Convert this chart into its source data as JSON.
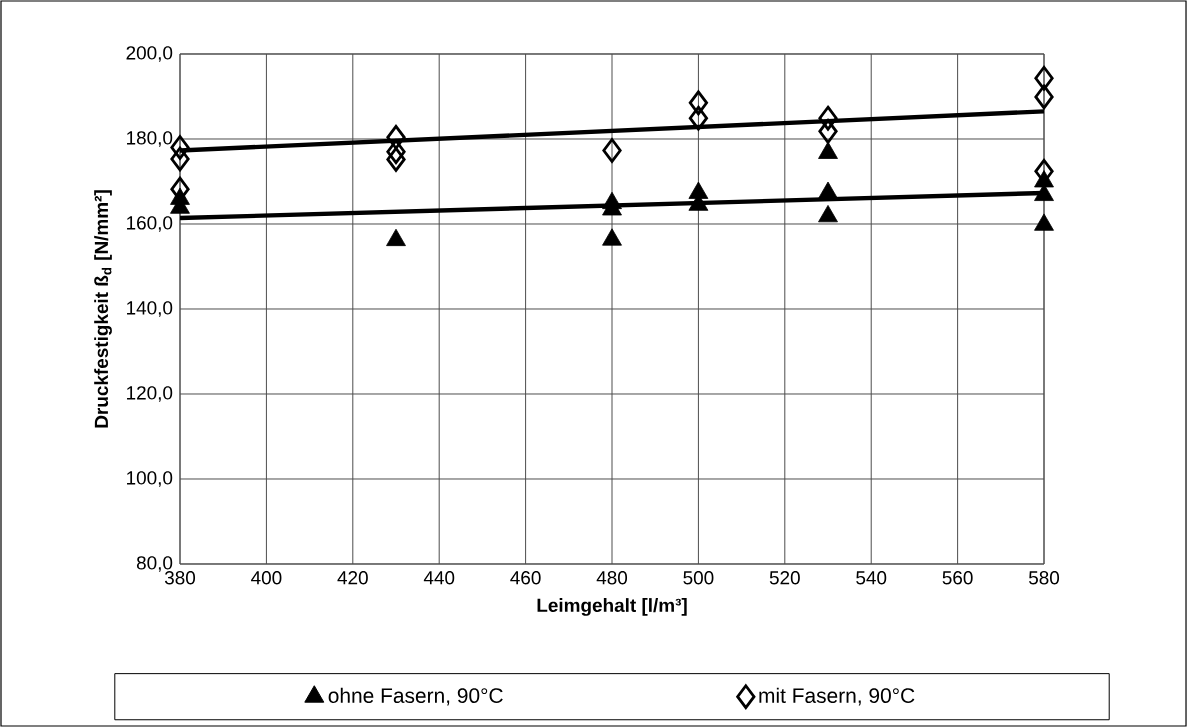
{
  "chart_data": {
    "type": "scatter",
    "xlabel": "Leimgehalt [l/m³]",
    "ylabel": "Druckfestigkeit  ß$_{d}$ [N/mm²]",
    "xlim": [
      380,
      580
    ],
    "xticks": [
      380,
      400,
      420,
      440,
      460,
      480,
      500,
      520,
      540,
      560,
      580
    ],
    "ylim": [
      80,
      200
    ],
    "yticks": [
      {
        "value": 80,
        "label": "80,0"
      },
      {
        "value": 100,
        "label": "100,0"
      },
      {
        "value": 120,
        "label": "120,0"
      },
      {
        "value": 140,
        "label": "140,0"
      },
      {
        "value": 160,
        "label": "160,0"
      },
      {
        "value": 180,
        "label": "180,0"
      },
      {
        "value": 200,
        "label": "200,0"
      }
    ],
    "grid": true,
    "legend": "bottom",
    "series": [
      {
        "name": "ohne Fasern, 90°C",
        "type": "scatter",
        "marker": "triangle",
        "color": "#000000",
        "x": [
          380,
          380,
          430,
          480,
          480,
          480,
          500,
          500,
          530,
          530,
          530,
          580,
          580,
          580
        ],
        "values": [
          165.9,
          163.8,
          156.2,
          164.9,
          163.4,
          156.3,
          167.3,
          164.5,
          176.7,
          167.3,
          161.8,
          170.0,
          166.8,
          159.8
        ]
      },
      {
        "name": "mit Fasern, 90°C",
        "type": "scatter",
        "marker": "diamond",
        "color": "#000000",
        "x": [
          380,
          380,
          380,
          430,
          430,
          430,
          480,
          500,
          500,
          530,
          530,
          580,
          580,
          580
        ],
        "values": [
          178.0,
          175.3,
          168.2,
          180.4,
          177.0,
          175.2,
          177.3,
          188.5,
          184.9,
          184.9,
          181.8,
          194.3,
          189.9,
          172.4
        ]
      },
      {
        "type": "line",
        "color": "#000000",
        "x": [
          380,
          580
        ],
        "values": [
          161.4,
          167.3
        ]
      },
      {
        "type": "line",
        "color": "#000000",
        "x": [
          380,
          580
        ],
        "values": [
          177.3,
          186.5
        ]
      }
    ]
  }
}
